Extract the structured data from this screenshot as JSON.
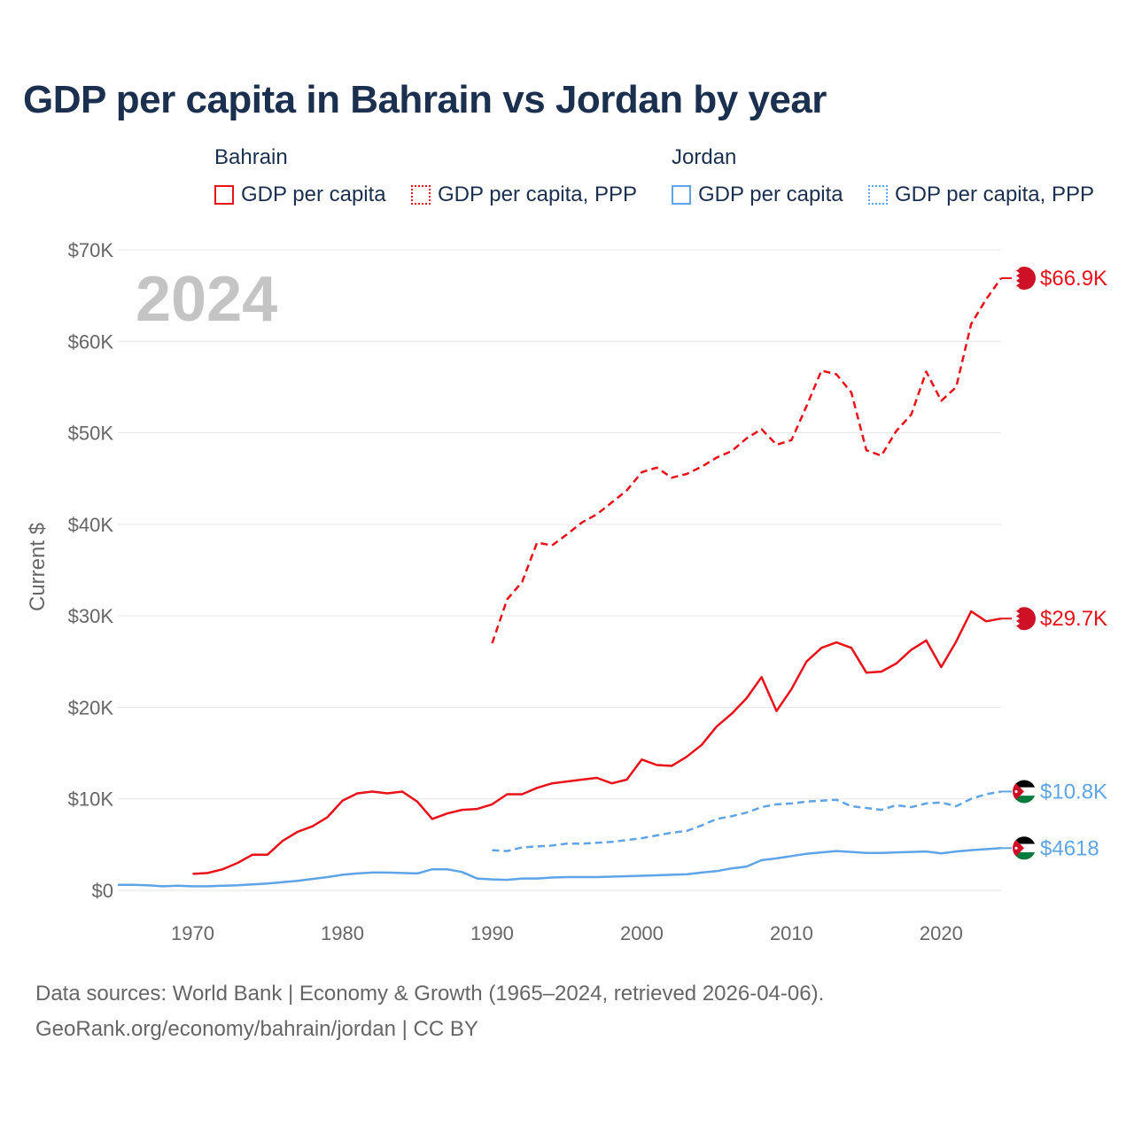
{
  "title": "GDP per capita in Bahrain vs Jordan by year",
  "legend": {
    "bahrain": {
      "group": "Bahrain",
      "solid_label": "GDP per capita",
      "dotted_label": "GDP per capita, PPP"
    },
    "jordan": {
      "group": "Jordan",
      "solid_label": "GDP per capita",
      "dotted_label": "GDP per capita, PPP"
    }
  },
  "colors": {
    "bahrain": "#e8121a",
    "jordan": "#5fa4e6",
    "grid": "#e6e6e6",
    "axis_text": "#666666",
    "year_watermark": "#c4c4c4"
  },
  "year_watermark": "2024",
  "footer": {
    "line1": "Data sources: World Bank | Economy & Growth (1965–2024, retrieved 2026-04-06).",
    "line2": "GeoRank.org/economy/bahrain/jordan | CC BY"
  },
  "chart_data": {
    "type": "line",
    "ylabel": "Current $",
    "xlabel": "",
    "xlim": [
      1965,
      2024
    ],
    "ylim": [
      0,
      70000
    ],
    "x_ticks": [
      1970,
      1980,
      1990,
      2000,
      2010,
      2020
    ],
    "y_ticks": [
      {
        "value": 0,
        "label": "$0"
      },
      {
        "value": 10000,
        "label": "$10K"
      },
      {
        "value": 20000,
        "label": "$20K"
      },
      {
        "value": 30000,
        "label": "$30K"
      },
      {
        "value": 40000,
        "label": "$40K"
      },
      {
        "value": 50000,
        "label": "$50K"
      },
      {
        "value": 60000,
        "label": "$60K"
      },
      {
        "value": 70000,
        "label": "$70K"
      }
    ],
    "series": [
      {
        "name": "Bahrain GDP per capita, PPP",
        "country": "bahrain",
        "style": "dashed",
        "end_label": "$66.9K",
        "x": [
          1990,
          1991,
          1992,
          1993,
          1994,
          1995,
          1996,
          1997,
          1998,
          1999,
          2000,
          2001,
          2002,
          2003,
          2004,
          2005,
          2006,
          2007,
          2008,
          2009,
          2010,
          2011,
          2012,
          2013,
          2014,
          2015,
          2016,
          2017,
          2018,
          2019,
          2020,
          2021,
          2022,
          2023,
          2024
        ],
        "values": [
          27000,
          31800,
          33700,
          38000,
          37700,
          38900,
          40200,
          41100,
          42400,
          43700,
          45700,
          46200,
          45100,
          45500,
          46300,
          47300,
          48000,
          49400,
          50400,
          48700,
          49200,
          52900,
          56800,
          56400,
          54400,
          48100,
          47500,
          50200,
          52000,
          56700,
          53500,
          55000,
          61900,
          64600,
          66900
        ]
      },
      {
        "name": "Bahrain GDP per capita",
        "country": "bahrain",
        "style": "solid",
        "end_label": "$29.7K",
        "x": [
          1970,
          1971,
          1972,
          1973,
          1974,
          1975,
          1976,
          1977,
          1978,
          1979,
          1980,
          1981,
          1982,
          1983,
          1984,
          1985,
          1986,
          1987,
          1988,
          1989,
          1990,
          1991,
          1992,
          1993,
          1994,
          1995,
          1996,
          1997,
          1998,
          1999,
          2000,
          2001,
          2002,
          2003,
          2004,
          2005,
          2006,
          2007,
          2008,
          2009,
          2010,
          2011,
          2012,
          2013,
          2014,
          2015,
          2016,
          2017,
          2018,
          2019,
          2020,
          2021,
          2022,
          2023,
          2024
        ],
        "values": [
          1800,
          1900,
          2300,
          3000,
          3900,
          3900,
          5400,
          6400,
          7000,
          8000,
          9800,
          10600,
          10800,
          10600,
          10800,
          9700,
          7800,
          8400,
          8800,
          8900,
          9400,
          10500,
          10500,
          11200,
          11700,
          11900,
          12100,
          12300,
          11700,
          12100,
          14300,
          13700,
          13600,
          14600,
          15900,
          17900,
          19300,
          21000,
          23300,
          19600,
          22000,
          25000,
          26500,
          27100,
          26500,
          23800,
          23900,
          24800,
          26300,
          27300,
          24400,
          27200,
          30500,
          29400,
          29700
        ]
      },
      {
        "name": "Jordan GDP per capita, PPP",
        "country": "jordan",
        "style": "dashed",
        "end_label": "$10.8K",
        "x": [
          1990,
          1991,
          1992,
          1993,
          1994,
          1995,
          1996,
          1997,
          1998,
          1999,
          2000,
          2001,
          2002,
          2003,
          2004,
          2005,
          2006,
          2007,
          2008,
          2009,
          2010,
          2011,
          2012,
          2013,
          2014,
          2015,
          2016,
          2017,
          2018,
          2019,
          2020,
          2021,
          2022,
          2023,
          2024
        ],
        "values": [
          4400,
          4300,
          4700,
          4800,
          4900,
          5100,
          5100,
          5200,
          5300,
          5500,
          5700,
          6000,
          6300,
          6500,
          7100,
          7800,
          8100,
          8500,
          9100,
          9400,
          9500,
          9700,
          9800,
          9900,
          9200,
          9000,
          8800,
          9300,
          9100,
          9500,
          9600,
          9200,
          10000,
          10500,
          10800
        ]
      },
      {
        "name": "Jordan GDP per capita",
        "country": "jordan",
        "style": "solid",
        "end_label": "$4618",
        "x": [
          1965,
          1966,
          1967,
          1968,
          1969,
          1970,
          1971,
          1972,
          1973,
          1974,
          1975,
          1976,
          1977,
          1978,
          1979,
          1980,
          1981,
          1982,
          1983,
          1984,
          1985,
          1986,
          1987,
          1988,
          1989,
          1990,
          1991,
          1992,
          1993,
          1994,
          1995,
          1996,
          1997,
          1998,
          1999,
          2000,
          2001,
          2002,
          2003,
          2004,
          2005,
          2006,
          2007,
          2008,
          2009,
          2010,
          2011,
          2012,
          2013,
          2014,
          2015,
          2016,
          2017,
          2018,
          2019,
          2020,
          2021,
          2022,
          2023,
          2024
        ],
        "values": [
          600,
          600,
          550,
          450,
          500,
          450,
          450,
          500,
          550,
          650,
          750,
          900,
          1050,
          1250,
          1450,
          1700,
          1850,
          1950,
          1950,
          1900,
          1850,
          2300,
          2300,
          2000,
          1300,
          1200,
          1150,
          1300,
          1300,
          1400,
          1450,
          1450,
          1450,
          1500,
          1550,
          1600,
          1650,
          1700,
          1750,
          1950,
          2100,
          2400,
          2600,
          3300,
          3500,
          3750,
          4000,
          4150,
          4300,
          4200,
          4100,
          4100,
          4150,
          4200,
          4250,
          4050,
          4250,
          4400,
          4500,
          4618
        ]
      }
    ]
  }
}
